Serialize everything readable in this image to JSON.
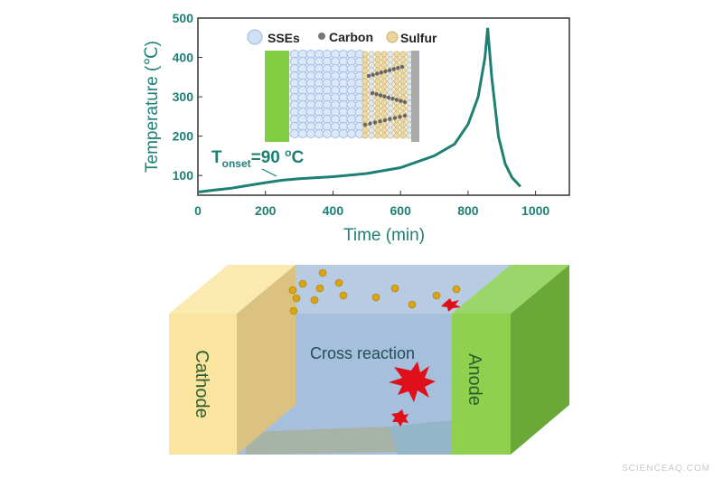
{
  "chart_data": {
    "type": "line",
    "xlabel": "Time (min)",
    "ylabel": "Temperature (℃)",
    "xlim": [
      0,
      1100
    ],
    "ylim": [
      50,
      500
    ],
    "xticks": [
      0,
      200,
      400,
      600,
      800,
      1000
    ],
    "yticks": [
      100,
      200,
      300,
      400,
      500
    ],
    "grid": false,
    "series": [
      {
        "name": "Temperature",
        "color": "#1e7f74",
        "x": [
          0,
          50,
          100,
          150,
          200,
          250,
          300,
          400,
          500,
          600,
          700,
          760,
          800,
          830,
          850,
          858,
          870,
          890,
          910,
          930,
          955
        ],
        "y": [
          58,
          63,
          68,
          75,
          82,
          88,
          92,
          97,
          105,
          120,
          150,
          180,
          230,
          300,
          400,
          475,
          350,
          200,
          130,
          95,
          72
        ]
      }
    ],
    "annotation": {
      "main": "T",
      "sub": "onset",
      "rest": "=90 ",
      "sup": "o",
      "unit": "C"
    },
    "inset_legend": [
      "SSEs",
      "Carbon",
      "Sulfur"
    ]
  },
  "diagram": {
    "cathode": "Cathode",
    "anode": "Anode",
    "center": "Cross reaction"
  },
  "watermark": "SCIENCEAQ.COM",
  "colors": {
    "curve": "#1e7f74",
    "cathode": "#fbe3a0",
    "anode": "#8fd14f",
    "electrolyte": "#a9c2df"
  }
}
